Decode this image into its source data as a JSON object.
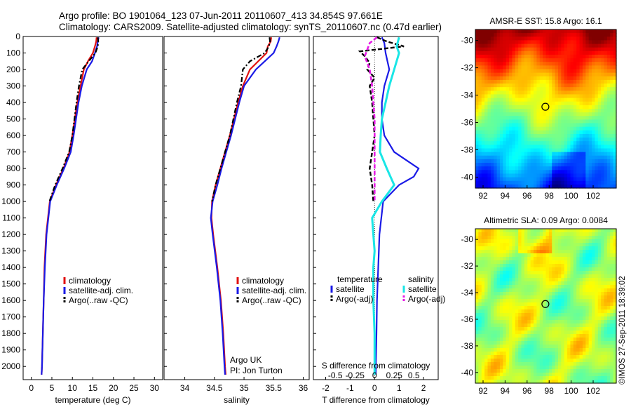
{
  "title": {
    "line1": "Argo profile: BO 1901064_123 07-Jun-2011 20110607_413 34.854S 97.661E",
    "line2": "Climatology: CARS2009. Satellite-adjusted climatology: synTS_20110607.nc (0.47d earlier)"
  },
  "colors": {
    "climatology": "#e01010",
    "satellite": "#1a1ae6",
    "argo": "#000000",
    "salinity_sat": "#19e6e6",
    "salinity_argo": "#e61ae6"
  },
  "footer": {
    "org": "Argo UK",
    "pi": "PI: Jon Turton",
    "stamp": "©IMOS 27-Sep-2011 18:39:02"
  },
  "chart_data": [
    {
      "type": "line",
      "xlabel": "temperature (deg C)",
      "xlim": [
        -2,
        32
      ],
      "ylim": [
        0,
        2080
      ],
      "xticks": [
        0,
        5,
        10,
        15,
        20,
        25,
        30
      ],
      "yticks": [
        0,
        100,
        200,
        300,
        400,
        500,
        600,
        700,
        800,
        900,
        1000,
        1100,
        1200,
        1300,
        1400,
        1500,
        1600,
        1700,
        1800,
        1900,
        2000
      ],
      "legend": [
        "climatology",
        "satellite-adj. clim.",
        "Argo(..raw -QC)"
      ],
      "series": [
        {
          "name": "climatology",
          "depth": [
            5,
            30,
            60,
            100,
            150,
            200,
            300,
            400,
            500,
            600,
            700,
            800,
            900,
            1000,
            1200,
            1400,
            1600,
            1800,
            2000,
            2050
          ],
          "values": [
            15.9,
            15.8,
            15.5,
            15.0,
            13.8,
            12.8,
            12.0,
            11.2,
            10.6,
            10.0,
            9.3,
            7.8,
            6.0,
            4.5,
            3.6,
            3.2,
            3.0,
            2.8,
            2.6,
            2.5
          ]
        },
        {
          "name": "satellite-adj. clim.",
          "depth": [
            5,
            30,
            60,
            100,
            150,
            200,
            300,
            400,
            500,
            600,
            700,
            800,
            900,
            1000,
            1200,
            1400,
            1600,
            1800,
            2000,
            2050
          ],
          "values": [
            16.4,
            16.2,
            16.0,
            15.5,
            14.8,
            13.5,
            12.3,
            11.5,
            10.9,
            10.3,
            9.6,
            8.0,
            6.2,
            4.6,
            3.7,
            3.3,
            3.0,
            2.8,
            2.6,
            2.5
          ]
        },
        {
          "name": "Argo(..raw -QC)",
          "depth": [
            5,
            30,
            60,
            100,
            150,
            200,
            300,
            400,
            500,
            600,
            700,
            800,
            900,
            1000
          ],
          "values": [
            16.2,
            16.3,
            16.2,
            15.6,
            14.0,
            12.4,
            11.6,
            11.0,
            10.5,
            10.0,
            9.2,
            7.6,
            5.8,
            4.4
          ]
        }
      ]
    },
    {
      "type": "line",
      "xlabel": "salinity",
      "xlim": [
        33.65,
        36.1
      ],
      "ylim": [
        0,
        2080
      ],
      "xticks": [
        34,
        34.5,
        35,
        35.5,
        36
      ],
      "legend": [
        "climatology",
        "satellite-adj. clim.",
        "Argo(..raw -QC)"
      ],
      "series": [
        {
          "name": "climatology",
          "depth": [
            5,
            30,
            60,
            100,
            200,
            300,
            400,
            500,
            600,
            700,
            800,
            900,
            1000,
            1100,
            1200,
            1400,
            1600,
            1800,
            2000,
            2050
          ],
          "values": [
            35.46,
            35.45,
            35.4,
            35.38,
            35.1,
            34.98,
            34.9,
            34.83,
            34.76,
            34.68,
            34.6,
            34.52,
            34.46,
            34.45,
            34.48,
            34.55,
            34.61,
            34.65,
            34.68,
            34.69
          ]
        },
        {
          "name": "satellite-adj. clim.",
          "depth": [
            5,
            30,
            60,
            100,
            200,
            300,
            400,
            500,
            600,
            700,
            800,
            900,
            1000,
            1100,
            1200,
            1400,
            1600,
            1800,
            2000,
            2050
          ],
          "values": [
            35.6,
            35.58,
            35.55,
            35.5,
            35.2,
            35.0,
            34.92,
            34.85,
            34.78,
            34.7,
            34.62,
            34.55,
            34.47,
            34.44,
            34.47,
            34.54,
            34.6,
            34.64,
            34.67,
            34.68
          ]
        },
        {
          "name": "Argo(..raw -QC)",
          "depth": [
            5,
            30,
            60,
            100,
            150,
            200,
            300,
            400,
            500,
            600,
            700,
            800,
            900,
            1000
          ],
          "values": [
            35.43,
            35.44,
            35.42,
            35.35,
            35.1,
            34.98,
            34.95,
            34.88,
            34.82,
            34.76,
            34.68,
            34.6,
            34.52,
            34.46
          ]
        }
      ]
    },
    {
      "type": "line",
      "xlabel": "T difference from climatology",
      "xlabel_top": "S difference from climatology",
      "xlim": [
        -2.5,
        2.6
      ],
      "ylim": [
        0,
        2080
      ],
      "xticks": [
        -2,
        -1,
        0,
        1,
        2
      ],
      "xticks_s": [
        -0.5,
        -0.25,
        0,
        0.25,
        0.5
      ],
      "legend_headers": [
        "temperature",
        "salinity"
      ],
      "legend": [
        "satellite",
        "Argo(-adj)",
        "satellite",
        "Argo(-adj)"
      ],
      "series": [
        {
          "name": "satellite",
          "group": "temperature",
          "depth": [
            5,
            40,
            100,
            200,
            300,
            400,
            500,
            600,
            700,
            750,
            800,
            850,
            900,
            1000,
            1200,
            1400,
            1600,
            1800,
            2000,
            2050
          ],
          "values": [
            0.3,
            0.4,
            0.45,
            0.6,
            0.4,
            0.3,
            0.3,
            0.4,
            0.8,
            1.3,
            1.8,
            1.6,
            1.0,
            0.35,
            0.2,
            0.15,
            0.1,
            0.08,
            0.05,
            0.05
          ]
        },
        {
          "name": "Argo(-adj)",
          "group": "temperature",
          "depth": [
            5,
            30,
            60,
            90,
            120,
            160,
            200,
            250,
            300,
            400,
            500,
            600,
            700,
            800,
            900,
            1000
          ],
          "values": [
            0.1,
            0.5,
            1.2,
            -0.6,
            -0.4,
            -0.2,
            -0.3,
            0.0,
            -0.2,
            -0.1,
            -0.05,
            0.0,
            -0.1,
            -0.2,
            -0.1,
            -0.05
          ]
        },
        {
          "name": "satellite",
          "group": "salinity",
          "depth": [
            5,
            60,
            100,
            200,
            300,
            400,
            500,
            600,
            700,
            800,
            900,
            1000,
            1100,
            1200,
            1300,
            1400,
            1600,
            1800,
            2000,
            2050
          ],
          "values": [
            1.0,
            0.9,
            1.0,
            0.8,
            0.6,
            0.45,
            0.3,
            0.25,
            0.22,
            0.5,
            0.8,
            0.3,
            -0.1,
            -0.05,
            0.0,
            -0.05,
            -0.05,
            0.0,
            0.0,
            0.0
          ]
        },
        {
          "name": "Argo(-adj)",
          "group": "salinity",
          "depth": [
            5,
            40,
            80,
            120,
            200,
            300,
            400,
            500,
            600,
            700,
            800,
            900,
            1000
          ],
          "values": [
            0.1,
            -0.2,
            -0.3,
            -0.4,
            -0.2,
            -0.1,
            -0.05,
            0.0,
            0.0,
            0.0,
            0.0,
            0.0,
            0.0
          ]
        }
      ]
    },
    {
      "type": "heatmap",
      "title": "AMSR-E SST: 15.8 Argo: 16.1",
      "xticks": [
        92,
        94,
        96,
        98,
        100,
        102
      ],
      "yticks": [
        -30,
        -32,
        -34,
        -36,
        -38,
        -40
      ],
      "xlim": [
        91.3,
        104.1
      ],
      "ylim": [
        -40.8,
        -29.2
      ],
      "marker": {
        "lon": 97.661,
        "lat": -34.854
      }
    },
    {
      "type": "heatmap",
      "title": "Altimetric SLA: 0.09 Argo: 0.0084",
      "xticks": [
        92,
        94,
        96,
        98,
        100,
        102
      ],
      "yticks": [
        -30,
        -32,
        -34,
        -36,
        -38,
        -40
      ],
      "xlim": [
        91.3,
        104.1
      ],
      "ylim": [
        -40.8,
        -29.2
      ],
      "marker": {
        "lon": 97.661,
        "lat": -34.854
      }
    }
  ]
}
